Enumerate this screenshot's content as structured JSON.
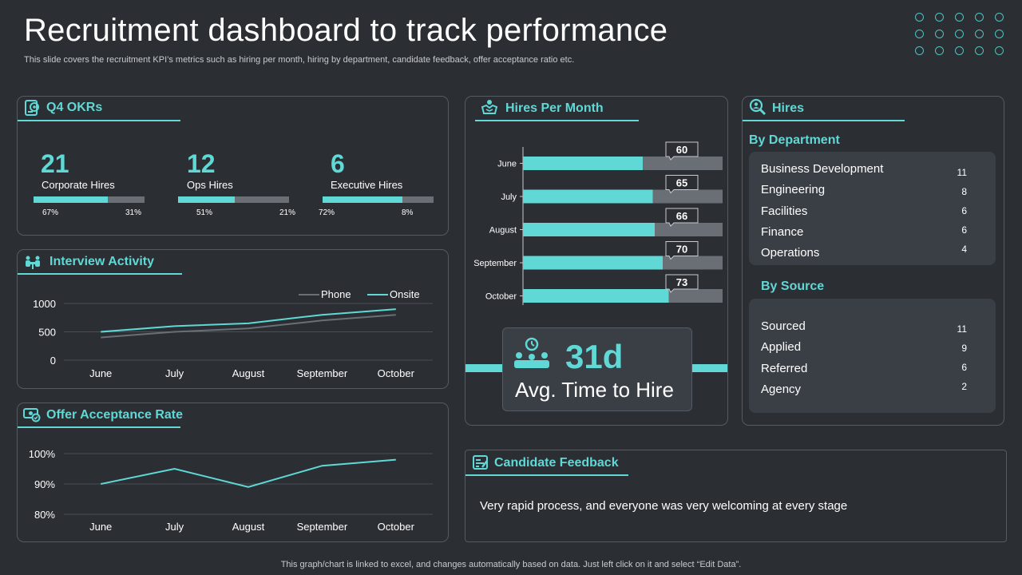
{
  "header": {
    "title": "Recruitment dashboard to track performance",
    "subtitle": "This slide covers the recruitment KPI’s metrics such as hiring per month, hiring by department, candidate feedback, offer acceptance ratio etc."
  },
  "okrs": {
    "title": "Q4 OKRs",
    "items": [
      {
        "value": "21",
        "label": "Corporate  Hires",
        "fill_pct": 67,
        "left_pct": "67%",
        "right_pct": "31%"
      },
      {
        "value": "12",
        "label": "Ops Hires",
        "fill_pct": 51,
        "left_pct": "51%",
        "right_pct": "21%"
      },
      {
        "value": "6",
        "label": "Executive Hires",
        "fill_pct": 72,
        "left_pct": "72%",
        "right_pct": "8%"
      }
    ]
  },
  "interview": {
    "title": "Interview Activity"
  },
  "offer": {
    "title": "Offer Acceptance Rate"
  },
  "hires_month": {
    "title": "Hires Per Month"
  },
  "avg_time": {
    "value": "31d",
    "label": "Avg. Time to Hire"
  },
  "hires": {
    "title": "Hires",
    "by_department_title": "By Department",
    "departments": [
      {
        "name": "Business Development",
        "value": "11"
      },
      {
        "name": "Engineering",
        "value": "8"
      },
      {
        "name": "Facilities",
        "value": "6"
      },
      {
        "name": "Finance",
        "value": "6"
      },
      {
        "name": "Operations",
        "value": "4"
      }
    ],
    "by_source_title": "By Source",
    "sources": [
      {
        "name": "Sourced",
        "value": "11"
      },
      {
        "name": "Applied",
        "value": "9"
      },
      {
        "name": "Referred",
        "value": "6"
      },
      {
        "name": "Agency",
        "value": "2"
      }
    ]
  },
  "feedback": {
    "title": "Candidate Feedback",
    "text": "Very rapid process, and everyone was very welcoming at every stage"
  },
  "footer": {
    "text": "This graph/chart is linked to excel,  and changes automatically based on data. Just left click on it and select “Edit Data”."
  },
  "colors": {
    "accent": "#5fd8d6",
    "muted": "#6a6f76",
    "background": "#2b2e33",
    "panel_inner": "#3a3f46"
  },
  "chart_data": [
    {
      "id": "interview",
      "type": "line",
      "title": "Interview Activity",
      "categories": [
        "June",
        "July",
        "August",
        "September",
        "October"
      ],
      "series": [
        {
          "name": "Phone",
          "values": [
            400,
            500,
            560,
            700,
            800
          ],
          "color": "#6a6f76"
        },
        {
          "name": "Onsite",
          "values": [
            500,
            600,
            650,
            800,
            900
          ],
          "color": "#5fd8d6"
        }
      ],
      "yticks": [
        0,
        500,
        1000
      ],
      "ylim": [
        0,
        1000
      ],
      "legend": "top-right"
    },
    {
      "id": "offer",
      "type": "line",
      "title": "Offer Acceptance Rate",
      "categories": [
        "June",
        "July",
        "August",
        "September",
        "October"
      ],
      "series": [
        {
          "name": "Acceptance Rate",
          "values": [
            90,
            95,
            89,
            96,
            98
          ],
          "color": "#5fd8d6"
        }
      ],
      "yticks": [
        80,
        90,
        100
      ],
      "ytick_labels": [
        "80%",
        "90%",
        "100%"
      ],
      "ylim": [
        80,
        100
      ]
    },
    {
      "id": "hires_month",
      "type": "bar",
      "orientation": "horizontal",
      "title": "Hires Per Month",
      "categories": [
        "June",
        "July",
        "August",
        "September",
        "October"
      ],
      "values": [
        60,
        65,
        66,
        70,
        73
      ],
      "xlim": [
        0,
        100
      ]
    }
  ]
}
